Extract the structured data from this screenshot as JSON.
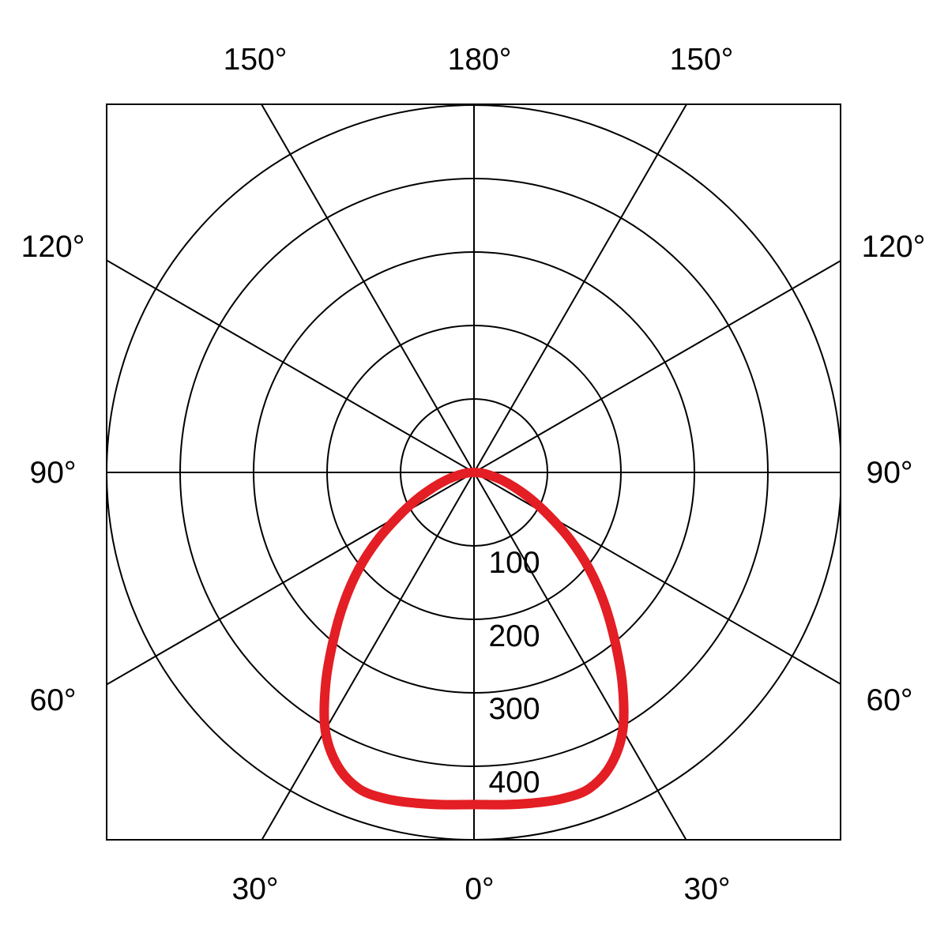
{
  "chart_data": {
    "type": "polar-line",
    "title": "",
    "angle_unit": "degrees",
    "angle_tick_labels": {
      "top": [
        "150°",
        "180°",
        "150°"
      ],
      "left": [
        "120°",
        "90°",
        "60°"
      ],
      "right": [
        "120°",
        "90°",
        "60°"
      ],
      "bottom": [
        "30°",
        "0°",
        "30°"
      ]
    },
    "radial_tick_labels": [
      "100",
      "200",
      "300",
      "400"
    ],
    "radial_range": [
      0,
      500
    ],
    "radial_gridlines": [
      100,
      200,
      300,
      400,
      500
    ],
    "angle_gridline_step": 30,
    "grid": true,
    "series": [
      {
        "color": "#e31e24",
        "symmetric": true,
        "angles": [
          0,
          5,
          10,
          15,
          20,
          25,
          30,
          35,
          40,
          45,
          50,
          55,
          60,
          65,
          70,
          75,
          80,
          85,
          90
        ],
        "values": [
          452,
          454,
          457,
          460,
          458,
          440,
          405,
          352,
          298,
          250,
          205,
          160,
          118,
          85,
          58,
          38,
          22,
          10,
          0
        ]
      }
    ]
  }
}
